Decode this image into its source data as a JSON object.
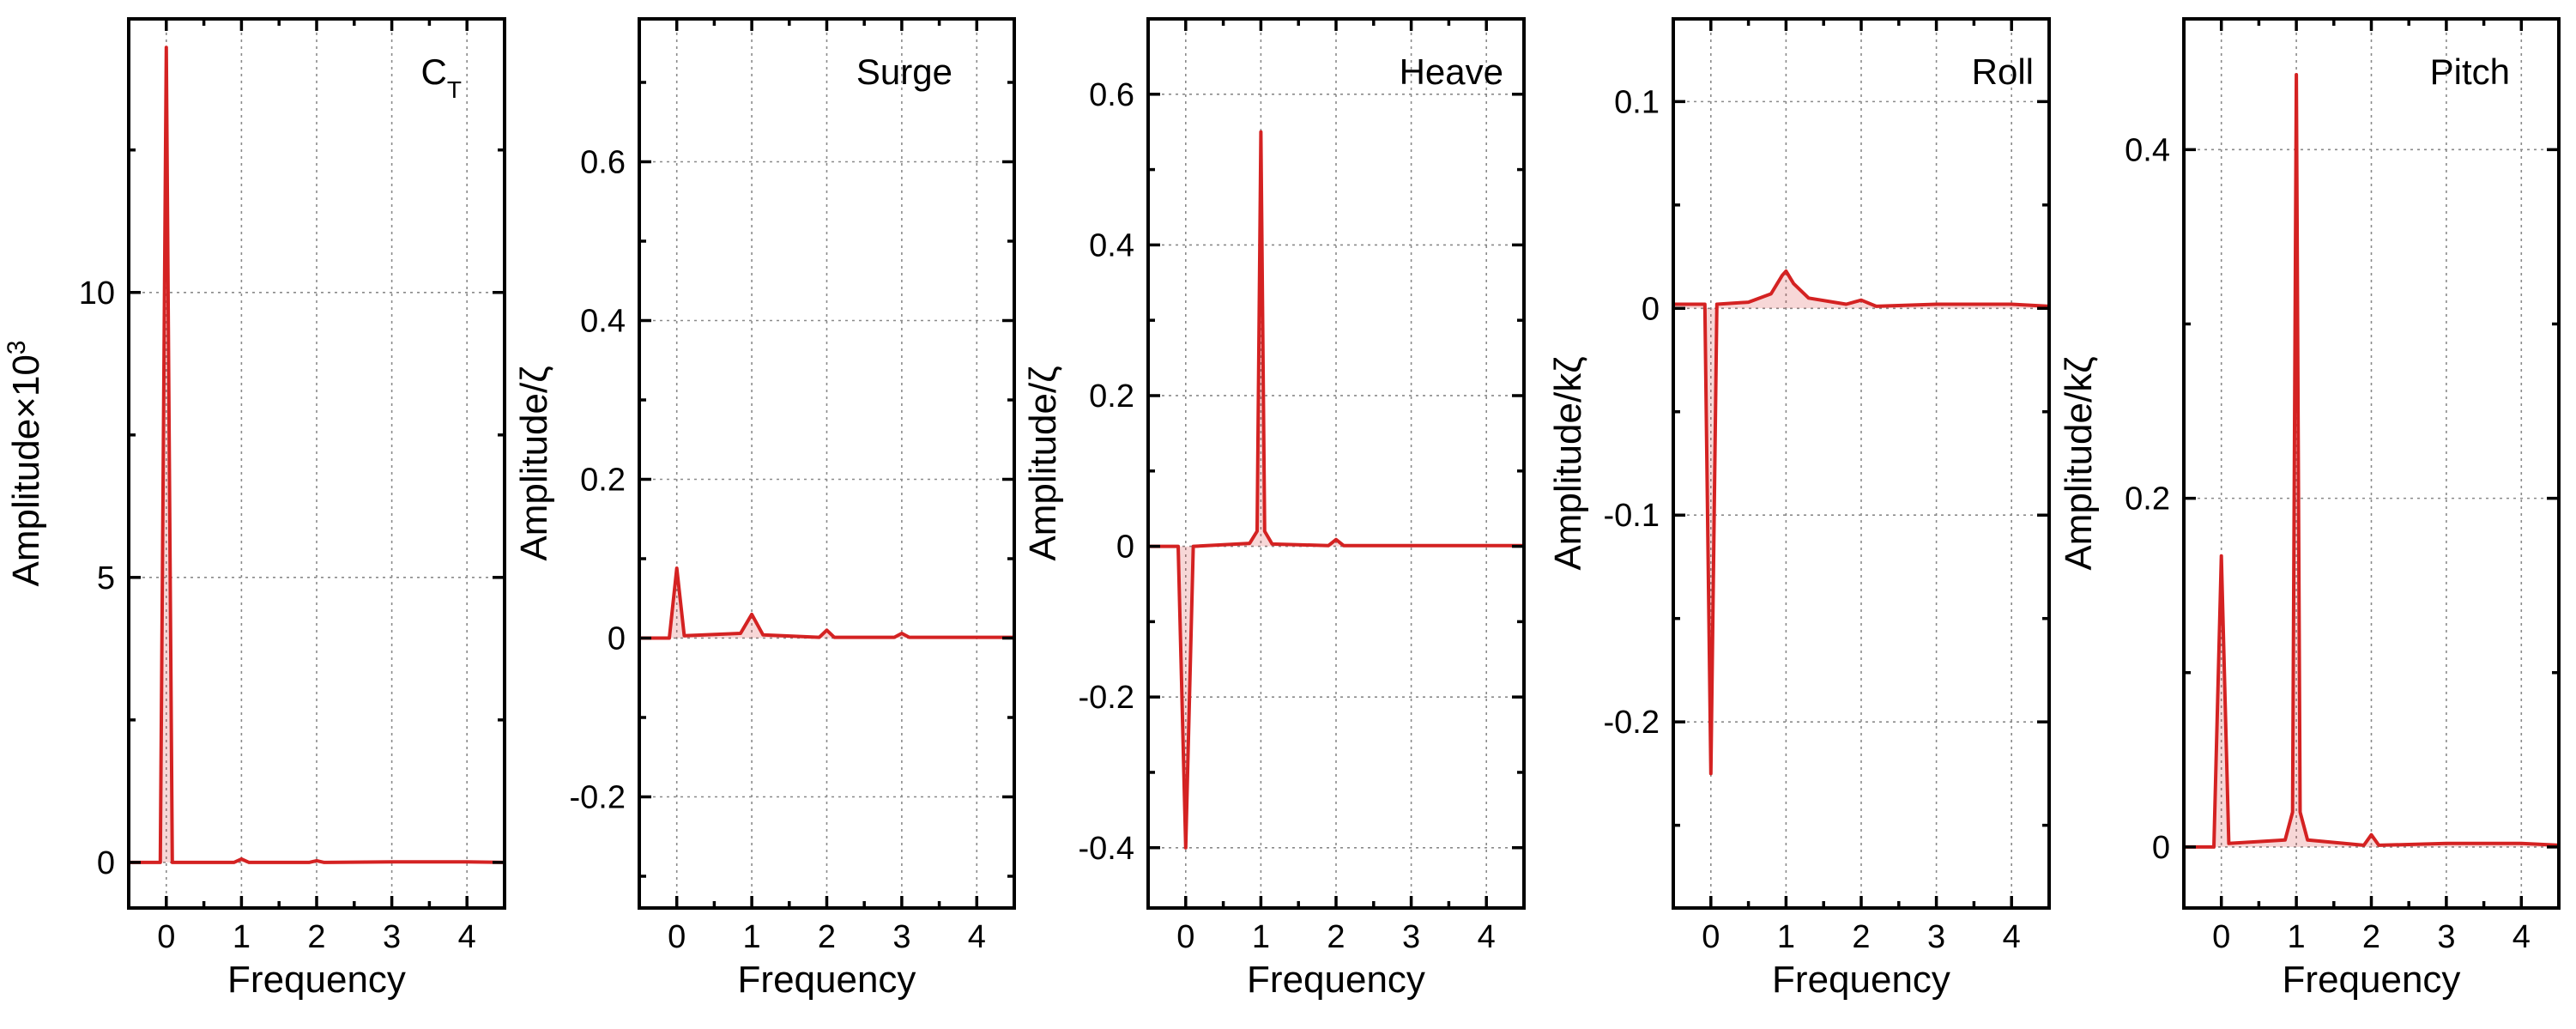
{
  "chart_data": [
    {
      "type": "line",
      "title": "C",
      "title_sub": "T",
      "xlabel": "Frequency",
      "ylabel": "Amplitude×10",
      "ylabel_sup": "3",
      "xlim": [
        -0.5,
        4.5
      ],
      "ylim": [
        -0.8,
        14.8
      ],
      "xticks": [
        0,
        1,
        2,
        3,
        4
      ],
      "xtick_labels": [
        "0",
        "1",
        "2",
        "3",
        "4"
      ],
      "yticks": [
        0,
        5,
        10
      ],
      "ytick_labels": [
        "0",
        "5",
        "10"
      ],
      "grid": true,
      "series": [
        {
          "name": "C_T",
          "color": "#d42222",
          "x": [
            -0.5,
            -0.08,
            0,
            0.08,
            0.9,
            1.0,
            1.1,
            1.9,
            2.0,
            2.1,
            3.0,
            4.0,
            4.5
          ],
          "y": [
            0,
            0,
            14.3,
            0,
            0,
            0.06,
            0,
            0,
            0.03,
            0,
            0.01,
            0.01,
            0
          ]
        }
      ]
    },
    {
      "type": "line",
      "title": "Surge",
      "xlabel": "Frequency",
      "ylabel": "Amplitude/ζ",
      "xlim": [
        -0.5,
        4.5
      ],
      "ylim": [
        -0.34,
        0.78
      ],
      "xticks": [
        0,
        1,
        2,
        3,
        4
      ],
      "xtick_labels": [
        "0",
        "1",
        "2",
        "3",
        "4"
      ],
      "yticks": [
        -0.2,
        0,
        0.2,
        0.4,
        0.6
      ],
      "ytick_labels": [
        "-0.2",
        "0",
        "0.2",
        "0.4",
        "0.6"
      ],
      "grid": true,
      "series": [
        {
          "name": "Surge",
          "color": "#d42222",
          "x": [
            -0.5,
            -0.1,
            0,
            0.1,
            0.85,
            1.0,
            1.15,
            1.9,
            2.0,
            2.1,
            2.9,
            3.0,
            3.1,
            4.0,
            4.5
          ],
          "y": [
            0,
            0,
            0.088,
            0.003,
            0.006,
            0.03,
            0.004,
            0.001,
            0.01,
            0.001,
            0.001,
            0.006,
            0.001,
            0.001,
            0.001
          ]
        }
      ]
    },
    {
      "type": "line",
      "title": "Heave",
      "xlabel": "Frequency",
      "ylabel": "Amplitude/ζ",
      "xlim": [
        -0.5,
        4.5
      ],
      "ylim": [
        -0.48,
        0.7
      ],
      "xticks": [
        0,
        1,
        2,
        3,
        4
      ],
      "xtick_labels": [
        "0",
        "1",
        "2",
        "3",
        "4"
      ],
      "yticks": [
        -0.4,
        -0.2,
        0,
        0.2,
        0.4,
        0.6
      ],
      "ytick_labels": [
        "-0.4",
        "-0.2",
        "0",
        "0.2",
        "0.4",
        "0.6"
      ],
      "grid": true,
      "series": [
        {
          "name": "Heave",
          "color": "#d42222",
          "x": [
            -0.5,
            -0.1,
            0,
            0.1,
            0.85,
            0.95,
            1.0,
            1.05,
            1.15,
            1.9,
            2.0,
            2.1,
            3.0,
            4.0,
            4.5
          ],
          "y": [
            0,
            0,
            -0.4,
            0,
            0.004,
            0.02,
            0.55,
            0.02,
            0.003,
            0.001,
            0.009,
            0.001,
            0.001,
            0.001,
            0.001
          ]
        }
      ]
    },
    {
      "type": "line",
      "title": "Roll",
      "xlabel": "Frequency",
      "ylabel": "Amplitude/kζ",
      "xlim": [
        -0.5,
        4.5
      ],
      "ylim": [
        -0.29,
        0.14
      ],
      "xticks": [
        0,
        1,
        2,
        3,
        4
      ],
      "xtick_labels": [
        "0",
        "1",
        "2",
        "3",
        "4"
      ],
      "yticks": [
        -0.2,
        -0.1,
        0,
        0.1
      ],
      "ytick_labels": [
        "-0.2",
        "-0.1",
        "0",
        "0.1"
      ],
      "grid": true,
      "series": [
        {
          "name": "Roll",
          "color": "#d42222",
          "x": [
            -0.5,
            -0.08,
            0,
            0.08,
            0.5,
            0.8,
            0.95,
            1.0,
            1.1,
            1.3,
            1.8,
            2.0,
            2.2,
            3.0,
            4.0,
            4.5
          ],
          "y": [
            0.002,
            0.002,
            -0.225,
            0.002,
            0.003,
            0.007,
            0.016,
            0.018,
            0.012,
            0.005,
            0.002,
            0.004,
            0.001,
            0.002,
            0.002,
            0.001
          ]
        }
      ]
    },
    {
      "type": "line",
      "title": "Pitch",
      "xlabel": "Frequency",
      "ylabel": "Amplitude/kζ",
      "xlim": [
        -0.5,
        4.5
      ],
      "ylim": [
        -0.035,
        0.475
      ],
      "xticks": [
        0,
        1,
        2,
        3,
        4
      ],
      "xtick_labels": [
        "0",
        "1",
        "2",
        "3",
        "4"
      ],
      "yticks": [
        0,
        0.2,
        0.4
      ],
      "ytick_labels": [
        "0",
        "0.2",
        "0.4"
      ],
      "grid": true,
      "series": [
        {
          "name": "Pitch",
          "color": "#d42222",
          "x": [
            -0.5,
            -0.1,
            0,
            0.1,
            0.85,
            0.95,
            1.0,
            1.05,
            1.15,
            1.9,
            2.0,
            2.1,
            3.0,
            4.0,
            4.5
          ],
          "y": [
            0,
            0,
            0.167,
            0.002,
            0.004,
            0.02,
            0.443,
            0.02,
            0.004,
            0.001,
            0.007,
            0.001,
            0.002,
            0.002,
            0.001
          ]
        }
      ]
    }
  ]
}
